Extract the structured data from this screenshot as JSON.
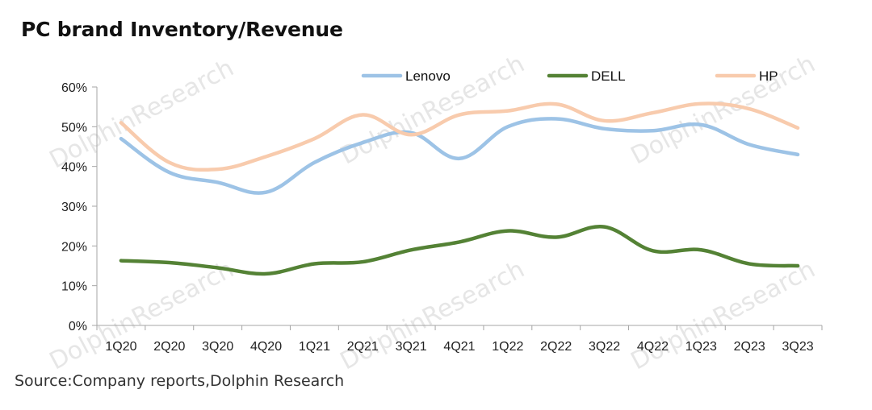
{
  "chart_data": {
    "type": "line",
    "title": "PC brand Inventory/Revenue",
    "source": "Source:Company reports,Dolphin Research",
    "categories": [
      "1Q20",
      "2Q20",
      "3Q20",
      "4Q20",
      "1Q21",
      "2Q21",
      "3Q21",
      "4Q21",
      "1Q22",
      "2Q22",
      "3Q22",
      "4Q22",
      "1Q23",
      "2Q23",
      "3Q23"
    ],
    "yticks": [
      "0%",
      "10%",
      "20%",
      "30%",
      "40%",
      "50%",
      "60%"
    ],
    "ylim": [
      0,
      60
    ],
    "legend_position": "top",
    "grid": false,
    "series": [
      {
        "name": "Lenovo",
        "color": "#9dc3e6",
        "values": [
          47,
          38.5,
          36,
          33.5,
          41,
          46,
          48.5,
          42,
          50,
          52,
          49.5,
          49,
          50.5,
          45.5,
          43
        ]
      },
      {
        "name": "DELL",
        "color": "#548235",
        "values": [
          16.3,
          15.8,
          14.5,
          13,
          15.5,
          16,
          19,
          21,
          23.8,
          22.2,
          24.8,
          18.8,
          19,
          15.5,
          15
        ]
      },
      {
        "name": "HP",
        "color": "#f8cbad",
        "values": [
          51,
          41,
          39.3,
          42.5,
          47,
          53,
          48,
          53,
          54,
          55.7,
          51.5,
          53.5,
          55.8,
          54.5,
          49.7
        ]
      }
    ],
    "watermark": "DolphinResearch"
  }
}
